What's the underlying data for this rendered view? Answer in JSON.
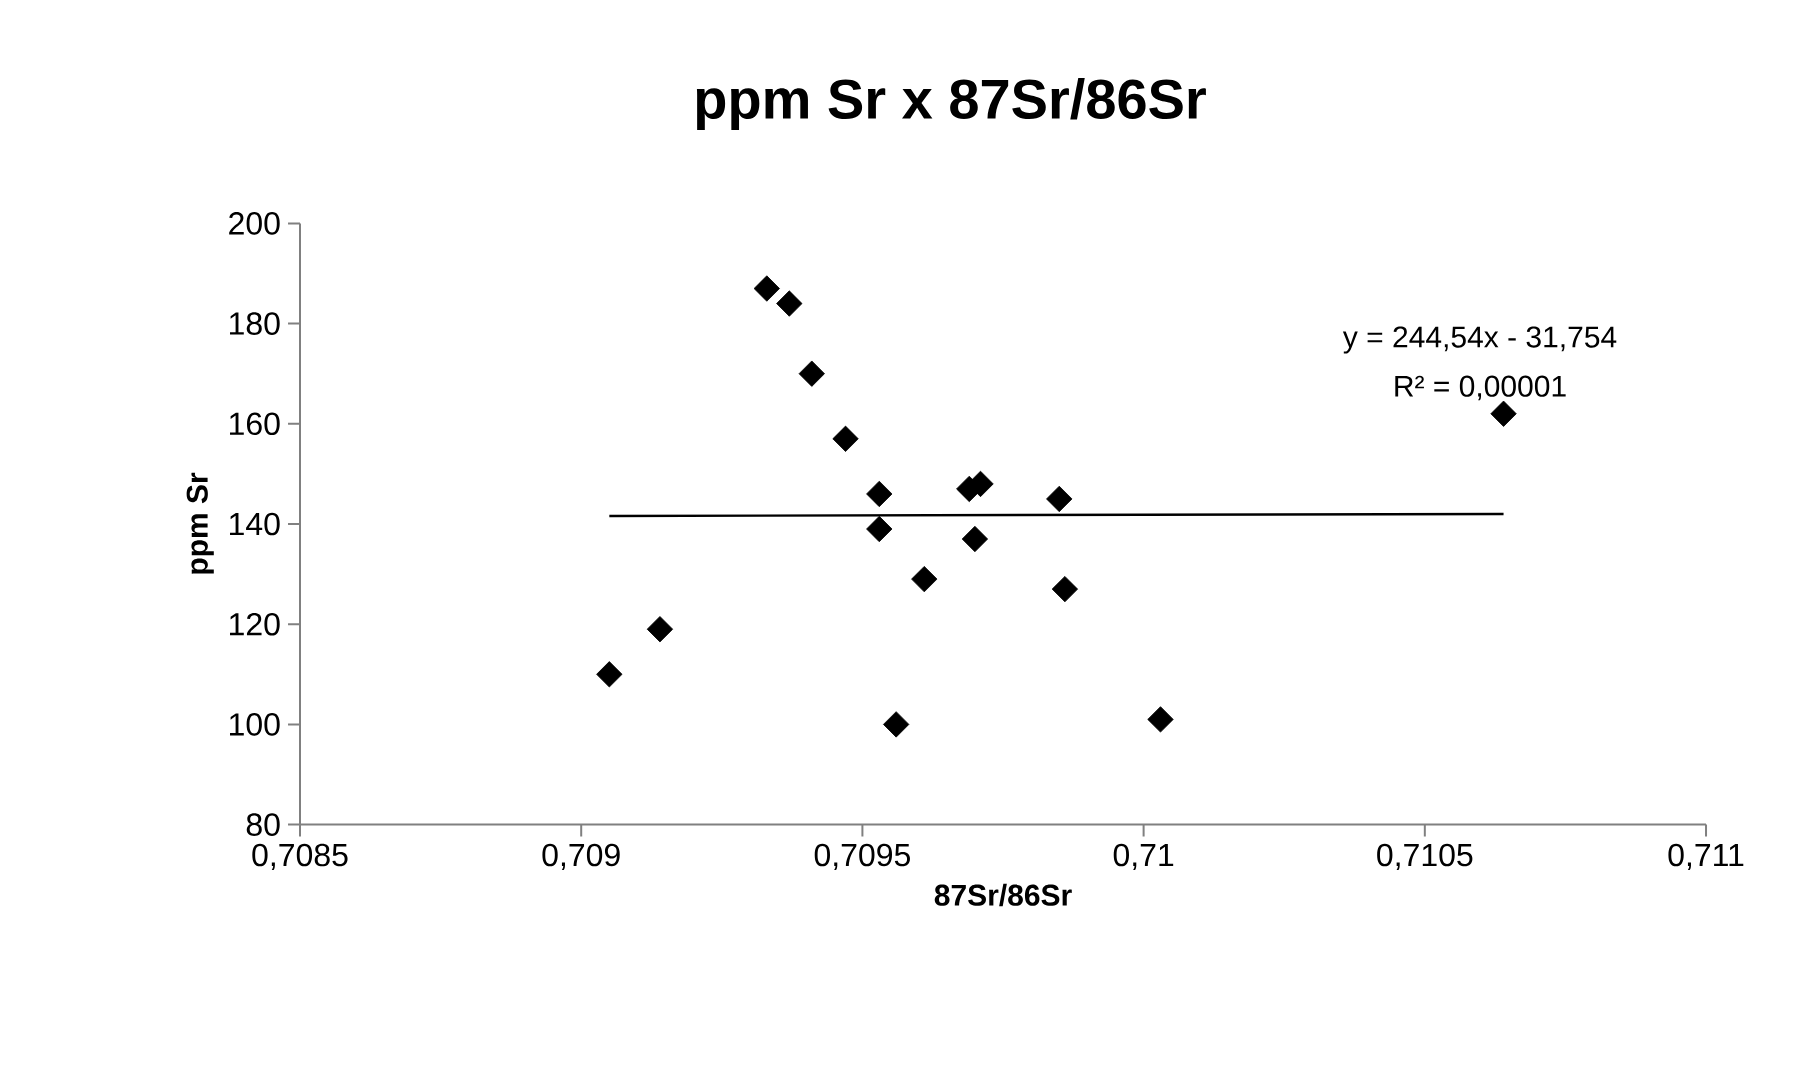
{
  "chart_data": {
    "type": "scatter",
    "title": "ppm Sr x 87Sr/86Sr",
    "xlabel": "87Sr/86Sr",
    "ylabel": "ppm Sr",
    "annotations": [
      "y = 244,54x - 31,754",
      "R² = 0,00001"
    ],
    "xlim": [
      0.7085,
      0.711
    ],
    "xticks": [
      {
        "value": 0.7085,
        "label": "0,7085"
      },
      {
        "value": 0.709,
        "label": "0,709"
      },
      {
        "value": 0.7095,
        "label": "0,7095"
      },
      {
        "value": 0.71,
        "label": "0,71"
      },
      {
        "value": 0.7105,
        "label": "0,7105"
      },
      {
        "value": 0.711,
        "label": "0,711"
      }
    ],
    "ylim": [
      80,
      200
    ],
    "yticks": [
      80,
      100,
      120,
      140,
      160,
      180,
      200
    ],
    "grid": false,
    "marker": "diamond",
    "series": [
      {
        "color": "#000000",
        "x": [
          0.70905,
          0.70914,
          0.70933,
          0.70937,
          0.70941,
          0.70947,
          0.70953,
          0.70953,
          0.70956,
          0.70961,
          0.70968,
          0.70969,
          0.70971,
          0.7097,
          0.70985,
          0.70986,
          0.71003,
          0.71064
        ],
        "values": [
          110,
          119,
          187,
          184,
          170,
          157,
          146,
          139,
          100,
          129,
          null,
          147,
          148,
          137,
          145,
          127,
          101,
          162
        ]
      },
      {
        "type": "line",
        "marker": "none",
        "line_style": "solid",
        "color": "#000000",
        "x": [
          0.70905,
          0.71064
        ],
        "values": [
          141.6,
          142.0
        ]
      }
    ]
  }
}
